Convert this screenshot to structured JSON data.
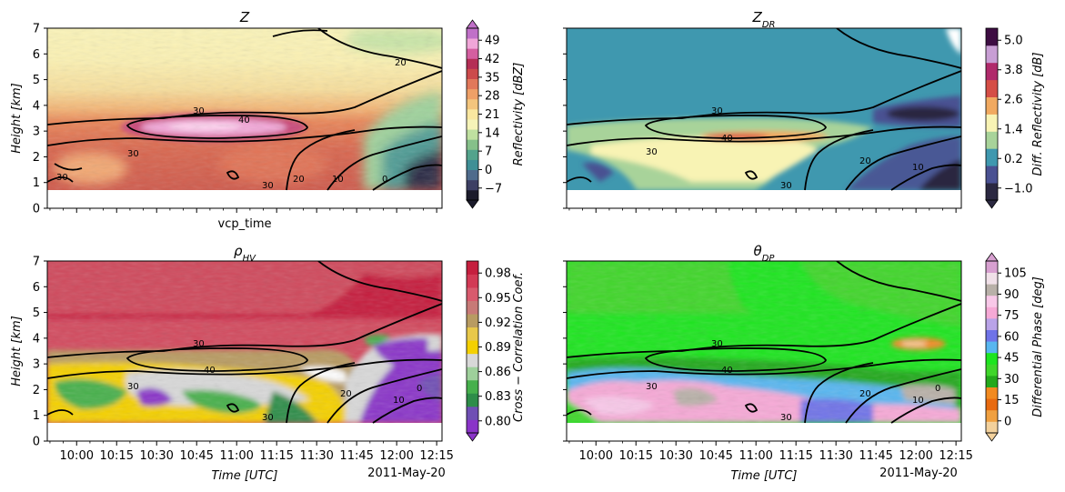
{
  "figure": {
    "date_label": "2011-May-20",
    "time_ticks": [
      "10:00",
      "10:15",
      "10:30",
      "10:45",
      "11:00",
      "11:15",
      "11:30",
      "11:45",
      "12:00",
      "12:15"
    ],
    "height_ticks": [
      "0",
      "1",
      "2",
      "3",
      "4",
      "5",
      "6",
      "7"
    ],
    "contour_labels": [
      "30",
      "30",
      "40",
      "30",
      "20",
      "10",
      "0",
      "20",
      "10"
    ],
    "contour_color": "#000000"
  },
  "chart_data": [
    {
      "type": "heatmap",
      "panel": "Z",
      "title": "Z",
      "xlabel": "vcp_time",
      "ylabel": "Height [km]",
      "ylim": [
        0,
        7
      ],
      "colorbar": {
        "label": "Reflectivity [dBZ]",
        "ticks": [
          "−7",
          "0",
          "7",
          "14",
          "21",
          "28",
          "35",
          "42",
          "49"
        ],
        "extend": "both",
        "colors": [
          "#1b1b2b",
          "#3d3f63",
          "#4f6b8c",
          "#3f8f96",
          "#53a38c",
          "#86c08a",
          "#bfe0a0",
          "#f5f3b8",
          "#f9e7a0",
          "#f3c57d",
          "#eea067",
          "#e1785a",
          "#cc4a4b",
          "#b42e55",
          "#d45fa0",
          "#f0a6d8",
          "#c070c8"
        ]
      }
    },
    {
      "type": "heatmap",
      "panel": "ZDR",
      "title": "Z_DR",
      "xlabel": "",
      "ylabel": "",
      "ylim": [
        0,
        7
      ],
      "colorbar": {
        "label": "Diff. Reflectivity [dB]",
        "ticks": [
          "−1.0",
          "0.2",
          "1.4",
          "2.6",
          "3.8",
          "5.0"
        ],
        "extend": "min",
        "colors": [
          "#2b2841",
          "#4a5192",
          "#3f98af",
          "#a8d39a",
          "#f8f3b4",
          "#f1a960",
          "#d54e46",
          "#b02a6b",
          "#c89ed4",
          "#3d0d42"
        ]
      }
    },
    {
      "type": "heatmap",
      "panel": "RHOHV",
      "title": "ρ_HV",
      "xlabel": "Time [UTC]",
      "ylabel": "Height [km]",
      "ylim": [
        0,
        7
      ],
      "colorbar": {
        "label": "Cross − Correlation Coef.",
        "ticks": [
          "0.80",
          "0.83",
          "0.86",
          "0.89",
          "0.92",
          "0.95",
          "0.98"
        ],
        "extend": "min",
        "colors": [
          "#8a34c8",
          "#6f4fb4",
          "#2e8d49",
          "#46b04c",
          "#9ed09b",
          "#d8d8d8",
          "#f4d000",
          "#e8c84a",
          "#b89b62",
          "#c77a77",
          "#d85a6d",
          "#d23a55",
          "#c51f3e"
        ]
      }
    },
    {
      "type": "heatmap",
      "panel": "PHIDP",
      "title": "θ_DP",
      "xlabel": "Time [UTC]",
      "ylabel": "",
      "ylim": [
        0,
        7
      ],
      "colorbar": {
        "label": "Differential Phase [deg]",
        "ticks": [
          "0",
          "15",
          "30",
          "45",
          "60",
          "75",
          "90",
          "105"
        ],
        "extend": "both",
        "colors": [
          "#f3d19c",
          "#f0a040",
          "#e86a10",
          "#f28a20",
          "#24a81c",
          "#3fd62a",
          "#1de51f",
          "#58b6f0",
          "#6f73e8",
          "#b9a3e8",
          "#f6a9d6",
          "#f8c8e8",
          "#b8b0a8",
          "#f0e0e8",
          "#d7a0d0"
        ]
      }
    }
  ]
}
